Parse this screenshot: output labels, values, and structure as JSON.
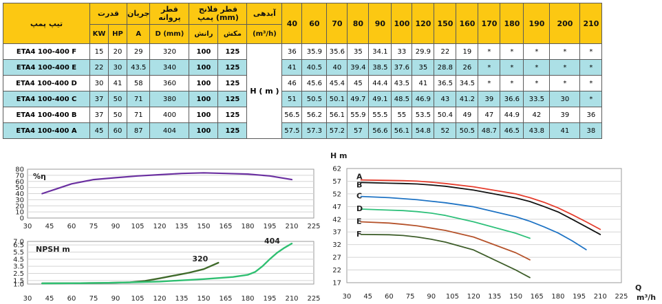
{
  "table": {
    "headers": {
      "pump_type": "تیپ پمپ",
      "power": "قدرت",
      "current": "جریان",
      "impeller": "قطر پروانه",
      "flange": "قطر فلانج پمپ (mm)",
      "flow": "آبدهی",
      "power_kw": "KW",
      "power_hp": "HP",
      "current_a": "A",
      "impeller_d": "D (mm)",
      "flange_outlet": "رانش",
      "flange_inlet": "مکش",
      "flow_unit": "(m³/h)",
      "head_label": "H ( m )",
      "flows": [
        "40",
        "60",
        "70",
        "80",
        "90",
        "100",
        "120",
        "150",
        "160",
        "170",
        "180",
        "190",
        "200",
        "210"
      ]
    },
    "rows": [
      {
        "model": "ETA4 100-400 F",
        "kw": "15",
        "hp": "20",
        "a": "29",
        "d": "320",
        "out": "100",
        "in": "125",
        "heads": [
          "36",
          "35.9",
          "35.6",
          "35",
          "34.1",
          "33",
          "29.9",
          "22",
          "19",
          "*",
          "*",
          "*",
          "*",
          "*"
        ]
      },
      {
        "model": "ETA4 100-400 E",
        "kw": "22",
        "hp": "30",
        "a": "43.5",
        "d": "340",
        "out": "100",
        "in": "125",
        "heads": [
          "41",
          "40.5",
          "40",
          "39.4",
          "38.5",
          "37.6",
          "35",
          "28.8",
          "26",
          "*",
          "*",
          "*",
          "*",
          "*"
        ]
      },
      {
        "model": "ETA4 100-400 D",
        "kw": "30",
        "hp": "41",
        "a": "58",
        "d": "360",
        "out": "100",
        "in": "125",
        "heads": [
          "46",
          "45.6",
          "45.4",
          "45",
          "44.4",
          "43.5",
          "41",
          "36.5",
          "34.5",
          "*",
          "*",
          "*",
          "*",
          "*"
        ]
      },
      {
        "model": "ETA4 100-400 C",
        "kw": "37",
        "hp": "50",
        "a": "71",
        "d": "380",
        "out": "100",
        "in": "125",
        "heads": [
          "51",
          "50.5",
          "50.1",
          "49.7",
          "49.1",
          "48.5",
          "46.9",
          "43",
          "41.2",
          "39",
          "36.6",
          "33.5",
          "30",
          "*"
        ]
      },
      {
        "model": "ETA4 100-400 B",
        "kw": "37",
        "hp": "50",
        "a": "71",
        "d": "400",
        "out": "100",
        "in": "125",
        "heads": [
          "56.5",
          "56.2",
          "56.1",
          "55.9",
          "55.5",
          "55",
          "53.5",
          "50.4",
          "49",
          "47",
          "44.9",
          "42",
          "39",
          "36"
        ]
      },
      {
        "model": "ETA4 100-400 A",
        "kw": "45",
        "hp": "60",
        "a": "87",
        "d": "404",
        "out": "100",
        "in": "125",
        "heads": [
          "57.5",
          "57.3",
          "57.2",
          "57",
          "56.6",
          "56.1",
          "54.8",
          "52",
          "50.5",
          "48.7",
          "46.5",
          "43.8",
          "41",
          "38"
        ]
      }
    ]
  },
  "chart_data": [
    {
      "type": "line",
      "ylabel": "%η",
      "xlim": [
        30,
        225
      ],
      "ylim": [
        0,
        80
      ],
      "xticks": [
        "30",
        "45",
        "60",
        "75",
        "90",
        "105",
        "120",
        "135",
        "150",
        "165",
        "180",
        "195",
        "210",
        "225"
      ],
      "yticks": [
        "0",
        "10",
        "20",
        "30",
        "40",
        "50",
        "60",
        "70",
        "80"
      ],
      "colors": {
        "efficiency": "#6a2fa0"
      },
      "series": [
        {
          "x": [
            40,
            50,
            60,
            75,
            90,
            105,
            120,
            135,
            150,
            165,
            180,
            195,
            210
          ],
          "values": [
            40,
            48,
            56,
            63,
            66,
            69,
            71,
            73,
            74,
            73,
            72,
            69,
            63
          ]
        }
      ]
    },
    {
      "type": "line",
      "ylabel": "NPSH m",
      "xlim": [
        30,
        225
      ],
      "ylim": [
        1,
        7
      ],
      "xticks": [
        "30",
        "45",
        "60",
        "75",
        "90",
        "105",
        "120",
        "135",
        "150",
        "165",
        "180",
        "195",
        "210",
        "225"
      ],
      "yticks": [
        "1.0",
        "1.5",
        "2.5",
        "3.5",
        "4.5",
        "5.5",
        "6.5",
        "7.0"
      ],
      "colors": {
        "d320": "#3f6a2a",
        "d404": "#2fbf71"
      },
      "series": [
        {
          "name": "320",
          "x": [
            40,
            60,
            80,
            100,
            110,
            120,
            130,
            140,
            150,
            160
          ],
          "values": [
            1.1,
            1.12,
            1.15,
            1.25,
            1.45,
            1.8,
            2.2,
            2.6,
            3.1,
            4.0
          ]
        },
        {
          "name": "404",
          "x": [
            40,
            60,
            90,
            120,
            150,
            170,
            180,
            185,
            190,
            195,
            200,
            205,
            210
          ],
          "values": [
            1.1,
            1.12,
            1.18,
            1.35,
            1.7,
            2.0,
            2.3,
            2.7,
            3.5,
            4.5,
            5.4,
            6.1,
            6.7
          ]
        }
      ]
    },
    {
      "type": "line",
      "ylabel": "H m",
      "xlabel": "Q",
      "xunit": "m³/h",
      "xlim": [
        30,
        225
      ],
      "ylim": [
        17,
        62
      ],
      "xticks": [
        "30",
        "45",
        "60",
        "75",
        "90",
        "105",
        "120",
        "135",
        "150",
        "165",
        "180",
        "195",
        "210",
        "225"
      ],
      "yticks": [
        "17",
        "22",
        "27",
        "32",
        "37",
        "42",
        "47",
        "52",
        "57",
        "62"
      ],
      "colors": {
        "A": "#e53c2c",
        "B": "#111111",
        "C": "#1e73c4",
        "D": "#2ec07a",
        "E": "#b5522a",
        "F": "#3e5e2a"
      },
      "series": [
        {
          "name": "A",
          "x": [
            40,
            60,
            70,
            80,
            90,
            100,
            120,
            150,
            160,
            170,
            180,
            190,
            200,
            210
          ],
          "values": [
            57.5,
            57.3,
            57.2,
            57,
            56.6,
            56.1,
            54.8,
            52,
            50.5,
            48.7,
            46.5,
            43.8,
            41,
            38
          ]
        },
        {
          "name": "B",
          "x": [
            40,
            60,
            70,
            80,
            90,
            100,
            120,
            150,
            160,
            170,
            180,
            190,
            200,
            210
          ],
          "values": [
            56.5,
            56.2,
            56.1,
            55.9,
            55.5,
            55,
            53.5,
            50.4,
            49,
            47,
            44.9,
            42,
            39,
            36
          ]
        },
        {
          "name": "C",
          "x": [
            40,
            60,
            70,
            80,
            90,
            100,
            120,
            150,
            160,
            170,
            180,
            190,
            200
          ],
          "values": [
            51,
            50.5,
            50.1,
            49.7,
            49.1,
            48.5,
            46.9,
            43,
            41.2,
            39,
            36.6,
            33.5,
            30
          ]
        },
        {
          "name": "D",
          "x": [
            40,
            60,
            70,
            80,
            90,
            100,
            120,
            150,
            160
          ],
          "values": [
            46,
            45.6,
            45.4,
            45,
            44.4,
            43.5,
            41,
            36.5,
            34.5
          ]
        },
        {
          "name": "E",
          "x": [
            40,
            60,
            70,
            80,
            90,
            100,
            120,
            150,
            160
          ],
          "values": [
            41,
            40.5,
            40,
            39.4,
            38.5,
            37.6,
            35,
            28.8,
            26
          ]
        },
        {
          "name": "F",
          "x": [
            40,
            60,
            70,
            80,
            90,
            100,
            120,
            150,
            160
          ],
          "values": [
            36,
            35.9,
            35.6,
            35,
            34.1,
            33,
            29.9,
            22,
            19
          ]
        }
      ]
    }
  ]
}
